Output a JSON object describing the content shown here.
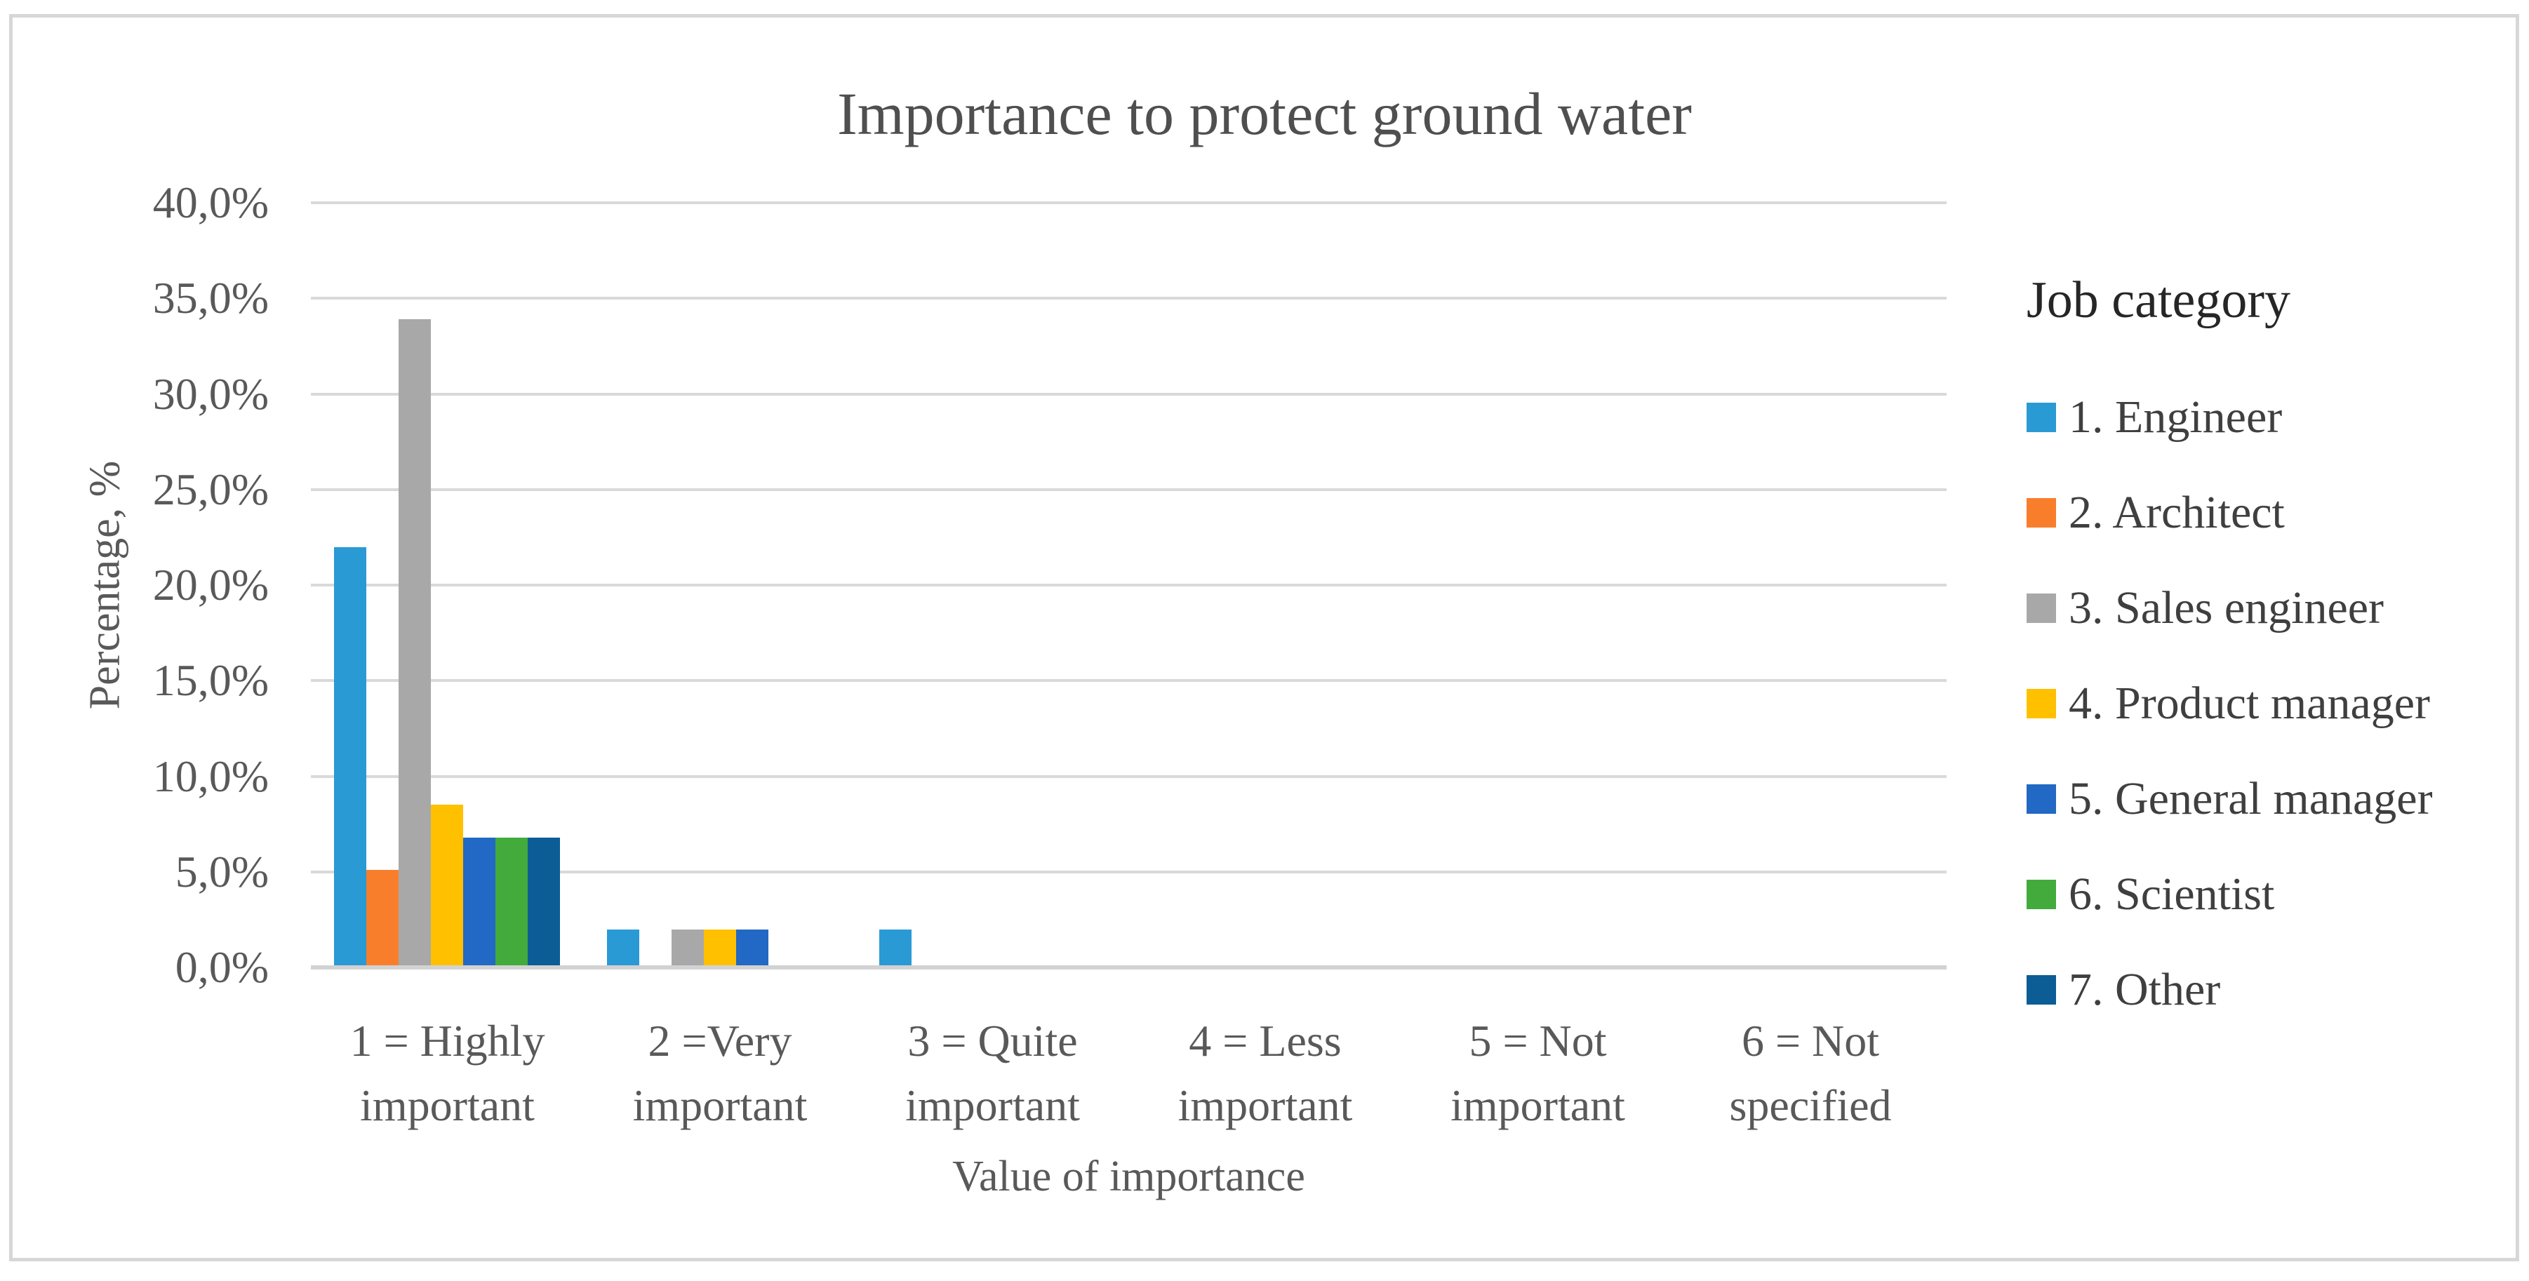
{
  "chart_data": {
    "type": "bar",
    "title": "Importance to protect ground water",
    "xlabel": "Value of importance",
    "ylabel": "Percentage, %",
    "ylim": [
      0,
      40
    ],
    "ytick_step": 5,
    "ytick_labels": [
      "0,0%",
      "5,0%",
      "10,0%",
      "15,0%",
      "20,0%",
      "25,0%",
      "30,0%",
      "35,0%",
      "40,0%"
    ],
    "grid": true,
    "legend": {
      "title": "Job category",
      "position": "right"
    },
    "categories": [
      "1 = Highly important",
      "2 =Very important",
      "3 = Quite important",
      "4 = Less important",
      "5 = Not important",
      "6 = Not specified"
    ],
    "category_label_lines": [
      [
        "1 = Highly",
        "important"
      ],
      [
        "2 =Very",
        "important"
      ],
      [
        "3 = Quite",
        "important"
      ],
      [
        "4 = Less",
        "important"
      ],
      [
        "5 = Not",
        "important"
      ],
      [
        "6 = Not",
        "specified"
      ]
    ],
    "series": [
      {
        "name": "1. Engineer",
        "color": "#2A9AD5",
        "values": [
          22.0,
          2.0,
          2.0,
          0,
          0,
          0
        ]
      },
      {
        "name": "2. Architect",
        "color": "#F97E2B",
        "values": [
          5.1,
          0,
          0,
          0,
          0,
          0
        ]
      },
      {
        "name": "3. Sales engineer",
        "color": "#A8A8A8",
        "values": [
          33.9,
          2.0,
          0,
          0,
          0,
          0
        ]
      },
      {
        "name": "4. Product manager",
        "color": "#FFC000",
        "values": [
          8.5,
          2.0,
          0,
          0,
          0,
          0
        ]
      },
      {
        "name": "5. General manager",
        "color": "#2268C5",
        "values": [
          6.8,
          2.0,
          0,
          0,
          0,
          0
        ]
      },
      {
        "name": "6. Scientist",
        "color": "#43AB3C",
        "values": [
          6.8,
          0,
          0,
          0,
          0,
          0
        ]
      },
      {
        "name": "7. Other",
        "color": "#0C5D96",
        "values": [
          6.8,
          0,
          0,
          0,
          0,
          0
        ]
      }
    ]
  }
}
